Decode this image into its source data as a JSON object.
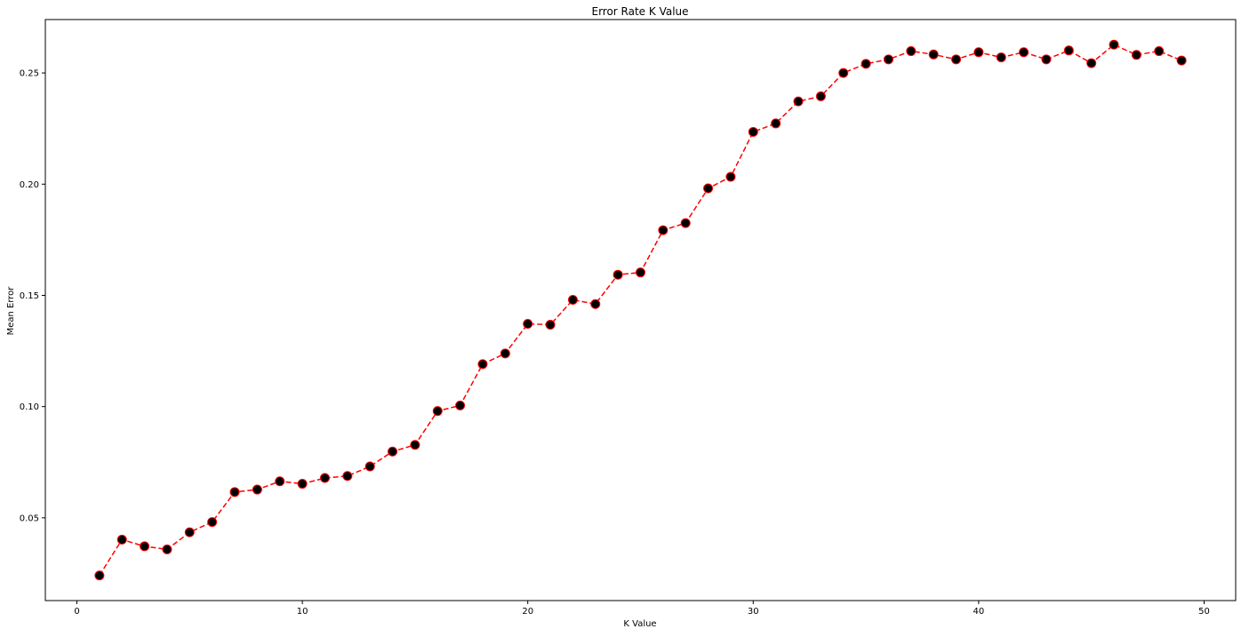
{
  "chart_data": {
    "type": "line",
    "title": "Error Rate K Value",
    "xlabel": "K Value",
    "ylabel": "Mean Error",
    "xlim": [
      -1.4,
      51.4
    ],
    "ylim": [
      0.0128,
      0.274
    ],
    "xticks": [
      0,
      10,
      20,
      30,
      40,
      50
    ],
    "xtick_labels": [
      "0",
      "10",
      "20",
      "30",
      "40",
      "50"
    ],
    "yticks": [
      0.05,
      0.1,
      0.15,
      0.2,
      0.25
    ],
    "ytick_labels": [
      "0.05",
      "0.10",
      "0.15",
      "0.20",
      "0.25"
    ],
    "grid": false,
    "line_style": "dashed",
    "line_color": "#ff0000",
    "marker": "circle",
    "marker_face_color": "#000000",
    "marker_edge_color": "#ff0000",
    "series": [
      {
        "x": [
          1,
          2,
          3,
          4,
          5,
          6,
          7,
          8,
          9,
          10,
          11,
          12,
          13,
          14,
          15,
          16,
          17,
          18,
          19,
          20,
          21,
          22,
          23,
          24,
          25,
          26,
          27,
          28,
          29,
          30,
          31,
          32,
          33,
          34,
          35,
          36,
          37,
          38,
          39,
          40,
          41,
          42,
          43,
          44,
          45,
          46,
          47,
          48,
          49
        ],
        "y": [
          0.0241,
          0.0402,
          0.0372,
          0.0358,
          0.0435,
          0.0481,
          0.0616,
          0.0627,
          0.0664,
          0.0653,
          0.0679,
          0.0688,
          0.0731,
          0.0798,
          0.0828,
          0.098,
          0.1005,
          0.1191,
          0.1239,
          0.1372,
          0.1368,
          0.148,
          0.1461,
          0.1593,
          0.1603,
          0.1793,
          0.1825,
          0.1981,
          0.2033,
          0.2235,
          0.2273,
          0.2372,
          0.2395,
          0.25,
          0.2541,
          0.2561,
          0.2598,
          0.2583,
          0.2561,
          0.2593,
          0.257,
          0.2593,
          0.2561,
          0.2601,
          0.2544,
          0.2627,
          0.2581,
          0.2598,
          0.2556
        ]
      }
    ]
  }
}
